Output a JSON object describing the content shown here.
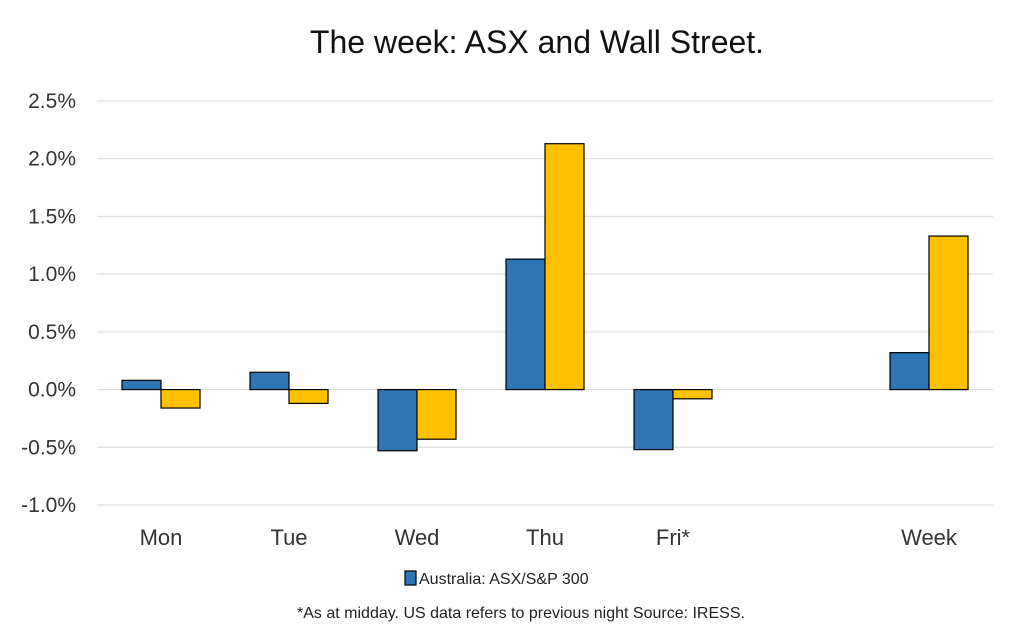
{
  "chart_data": {
    "type": "bar",
    "title": "The week:  ASX and Wall Street.",
    "categories": [
      "Mon",
      "Tue",
      "Wed",
      "Thu",
      "Fri*",
      "",
      "Week"
    ],
    "series": [
      {
        "name": "Australia: ASX/S&P 300",
        "color": "#2E75B6",
        "values": [
          0.08,
          0.15,
          -0.53,
          1.13,
          -0.52,
          null,
          0.32
        ]
      },
      {
        "color": "#FFC000",
        "values": [
          -0.16,
          -0.12,
          -0.43,
          2.13,
          -0.08,
          null,
          1.33
        ]
      }
    ],
    "ylim": [
      -1.0,
      2.5
    ],
    "yticks": [
      2.5,
      2.0,
      1.5,
      1.0,
      0.5,
      0.0,
      -0.5,
      -1.0
    ],
    "ytick_labels": [
      "2.5%",
      "2.0%",
      "1.5%",
      "1.0%",
      "0.5%",
      "0.0%",
      "-0.5%",
      "-1.0%"
    ],
    "y_unit": "percent",
    "grid": true,
    "legend_position": "bottom",
    "footnote": "*As at midday. US data refers to previous night  Source:  IRESS.",
    "xlabel": "",
    "ylabel": ""
  }
}
